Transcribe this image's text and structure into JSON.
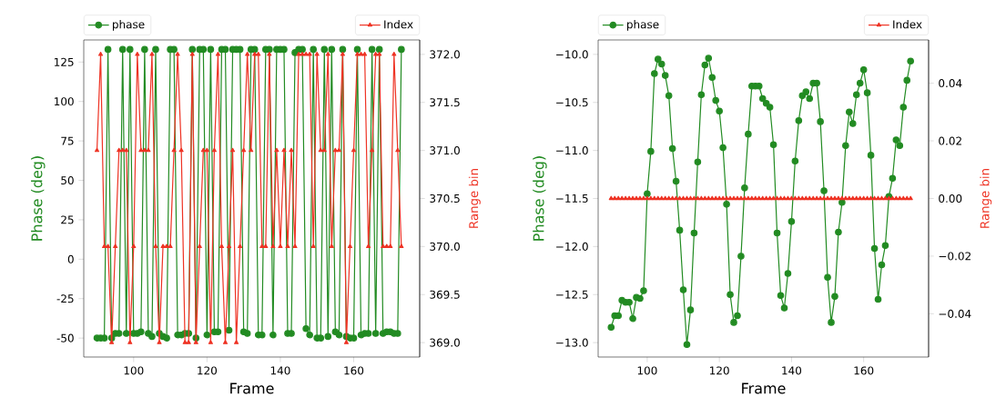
{
  "chart_data": [
    {
      "type": "line",
      "xlabel": "Frame",
      "ylabel": "Phase (deg)",
      "y2label": "Range bin",
      "legend": "top",
      "x": [
        90,
        91,
        92,
        93,
        94,
        95,
        96,
        97,
        98,
        99,
        100,
        101,
        102,
        103,
        104,
        105,
        106,
        107,
        108,
        109,
        110,
        111,
        112,
        113,
        114,
        115,
        116,
        117,
        118,
        119,
        120,
        121,
        122,
        123,
        124,
        125,
        126,
        127,
        128,
        129,
        130,
        131,
        132,
        133,
        134,
        135,
        136,
        137,
        138,
        139,
        140,
        141,
        142,
        143,
        144,
        145,
        146,
        147,
        148,
        149,
        150,
        151,
        152,
        153,
        154,
        155,
        156,
        157,
        158,
        159,
        160,
        161,
        162,
        163,
        164,
        165,
        166,
        167,
        168,
        169,
        170,
        171,
        172,
        173
      ],
      "xlim": [
        86.4,
        178
      ],
      "ylim": [
        -62,
        139
      ],
      "y2lim": [
        368.85,
        372.15
      ],
      "xticks": [
        100,
        120,
        140,
        160
      ],
      "yticks": [
        -50,
        -25,
        0,
        25,
        50,
        75,
        100,
        125
      ],
      "y2ticks": [
        {
          "value": 369,
          "label": "369.0"
        },
        {
          "value": 369.5,
          "label": "369.5"
        },
        {
          "value": 370,
          "label": "370.0"
        },
        {
          "value": 370.5,
          "label": "370.5"
        },
        {
          "value": 371,
          "label": "371.0"
        },
        {
          "value": 371.5,
          "label": "371.5"
        },
        {
          "value": 372,
          "label": "372.0"
        }
      ],
      "series": [
        {
          "name": "phase",
          "color": "#228b22",
          "marker": "circle",
          "values": [
            -50,
            -50,
            -50,
            133,
            -50,
            -47,
            -47,
            133,
            -47,
            133,
            -47,
            -47,
            -46,
            133,
            -47,
            -49,
            133,
            -47,
            -49,
            -50,
            133,
            133,
            -48,
            -48,
            -47,
            -47,
            133,
            -50,
            133,
            133,
            -48,
            133,
            -46,
            -46,
            133,
            133,
            -45,
            133,
            133,
            133,
            -46,
            -47,
            133,
            133,
            -48,
            -48,
            133,
            133,
            -48,
            133,
            133,
            133,
            -47,
            -47,
            131,
            133,
            133,
            -44,
            -48,
            133,
            -50,
            -50,
            133,
            -49,
            133,
            -46,
            -48,
            133,
            -49,
            -50,
            -50,
            133,
            -48,
            -47,
            -47,
            133,
            -47,
            133,
            -47,
            -46,
            -46,
            -47,
            -47,
            133
          ]
        },
        {
          "name": "Index",
          "color": "#ee3324",
          "marker": "triangle",
          "axis": "y2",
          "values": [
            371,
            372,
            370,
            370,
            369,
            370,
            371,
            371,
            371,
            369,
            370,
            372,
            371,
            371,
            371,
            372,
            370,
            369,
            370,
            370,
            370,
            371,
            372,
            371,
            369,
            369,
            372,
            369,
            370,
            371,
            371,
            369,
            371,
            372,
            370,
            369,
            370,
            371,
            369,
            370,
            371,
            372,
            371,
            372,
            372,
            370,
            370,
            372,
            370,
            371,
            370,
            371,
            370,
            371,
            370,
            372,
            372,
            372,
            372,
            370,
            372,
            371,
            371,
            372,
            370,
            371,
            371,
            372,
            369,
            370,
            371,
            372,
            372,
            372,
            370,
            371,
            372,
            372,
            370,
            370,
            370,
            372,
            371,
            370
          ]
        }
      ]
    },
    {
      "type": "line",
      "xlabel": "Frame",
      "ylabel": "Phase (deg)",
      "y2label": "Range bin",
      "legend": "top",
      "x": [
        90,
        91,
        92,
        93,
        94,
        95,
        96,
        97,
        98,
        99,
        100,
        101,
        102,
        103,
        104,
        105,
        106,
        107,
        108,
        109,
        110,
        111,
        112,
        113,
        114,
        115,
        116,
        117,
        118,
        119,
        120,
        121,
        122,
        123,
        124,
        125,
        126,
        127,
        128,
        129,
        130,
        131,
        132,
        133,
        134,
        135,
        136,
        137,
        138,
        139,
        140,
        141,
        142,
        143,
        144,
        145,
        146,
        147,
        148,
        149,
        150,
        151,
        152,
        153,
        154,
        155,
        156,
        157,
        158,
        159,
        160,
        161,
        162,
        163,
        164,
        165,
        166,
        167,
        168,
        169,
        170,
        171,
        172,
        173
      ],
      "xlim": [
        86.4,
        178
      ],
      "ylim": [
        -13.15,
        -9.85
      ],
      "y2lim": [
        -0.055,
        0.055
      ],
      "xticks": [
        100,
        120,
        140,
        160
      ],
      "yticks": [
        {
          "value": -13,
          "label": "−13.0"
        },
        {
          "value": -12.5,
          "label": "−12.5"
        },
        {
          "value": -12,
          "label": "−12.0"
        },
        {
          "value": -11.5,
          "label": "−11.5"
        },
        {
          "value": -11,
          "label": "−11.0"
        },
        {
          "value": -10.5,
          "label": "−10.5"
        },
        {
          "value": -10,
          "label": "−10.0"
        }
      ],
      "y2ticks": [
        {
          "value": -0.04,
          "label": "−0.04"
        },
        {
          "value": -0.02,
          "label": "−0.02"
        },
        {
          "value": 0,
          "label": "0.00"
        },
        {
          "value": 0.02,
          "label": "0.02"
        },
        {
          "value": 0.04,
          "label": "0.04"
        }
      ],
      "series": [
        {
          "name": "phase",
          "color": "#228b22",
          "marker": "circle",
          "values": [
            -12.84,
            -12.72,
            -12.72,
            -12.56,
            -12.58,
            -12.58,
            -12.75,
            -12.53,
            -12.54,
            -12.46,
            -11.45,
            -11.01,
            -10.2,
            -10.05,
            -10.1,
            -10.22,
            -10.43,
            -10.98,
            -11.32,
            -11.83,
            -12.45,
            -13.02,
            -12.66,
            -11.86,
            -11.12,
            -10.42,
            -10.11,
            -10.04,
            -10.24,
            -10.48,
            -10.59,
            -10.97,
            -11.56,
            -12.5,
            -12.79,
            -12.72,
            -12.1,
            -11.39,
            -10.83,
            -10.33,
            -10.33,
            -10.33,
            -10.46,
            -10.51,
            -10.55,
            -10.94,
            -11.86,
            -12.51,
            -12.64,
            -12.28,
            -11.74,
            -11.11,
            -10.69,
            -10.43,
            -10.39,
            -10.46,
            -10.3,
            -10.3,
            -10.7,
            -11.42,
            -12.32,
            -12.79,
            -12.52,
            -11.85,
            -11.54,
            -10.95,
            -10.6,
            -10.72,
            -10.42,
            -10.3,
            -10.16,
            -10.4,
            -11.05,
            -12.02,
            -12.55,
            -12.19,
            -11.99,
            -11.48,
            -11.29,
            -10.89,
            -10.95,
            -10.55,
            -10.27,
            -10.07
          ]
        },
        {
          "name": "Index",
          "color": "#ee3324",
          "marker": "triangle",
          "axis": "y2",
          "values": [
            0,
            0,
            0,
            0,
            0,
            0,
            0,
            0,
            0,
            0,
            0,
            0,
            0,
            0,
            0,
            0,
            0,
            0,
            0,
            0,
            0,
            0,
            0,
            0,
            0,
            0,
            0,
            0,
            0,
            0,
            0,
            0,
            0,
            0,
            0,
            0,
            0,
            0,
            0,
            0,
            0,
            0,
            0,
            0,
            0,
            0,
            0,
            0,
            0,
            0,
            0,
            0,
            0,
            0,
            0,
            0,
            0,
            0,
            0,
            0,
            0,
            0,
            0,
            0,
            0,
            0,
            0,
            0,
            0,
            0,
            0,
            0,
            0,
            0,
            0,
            0,
            0,
            0,
            0,
            0,
            0,
            0,
            0,
            0
          ]
        }
      ]
    }
  ]
}
